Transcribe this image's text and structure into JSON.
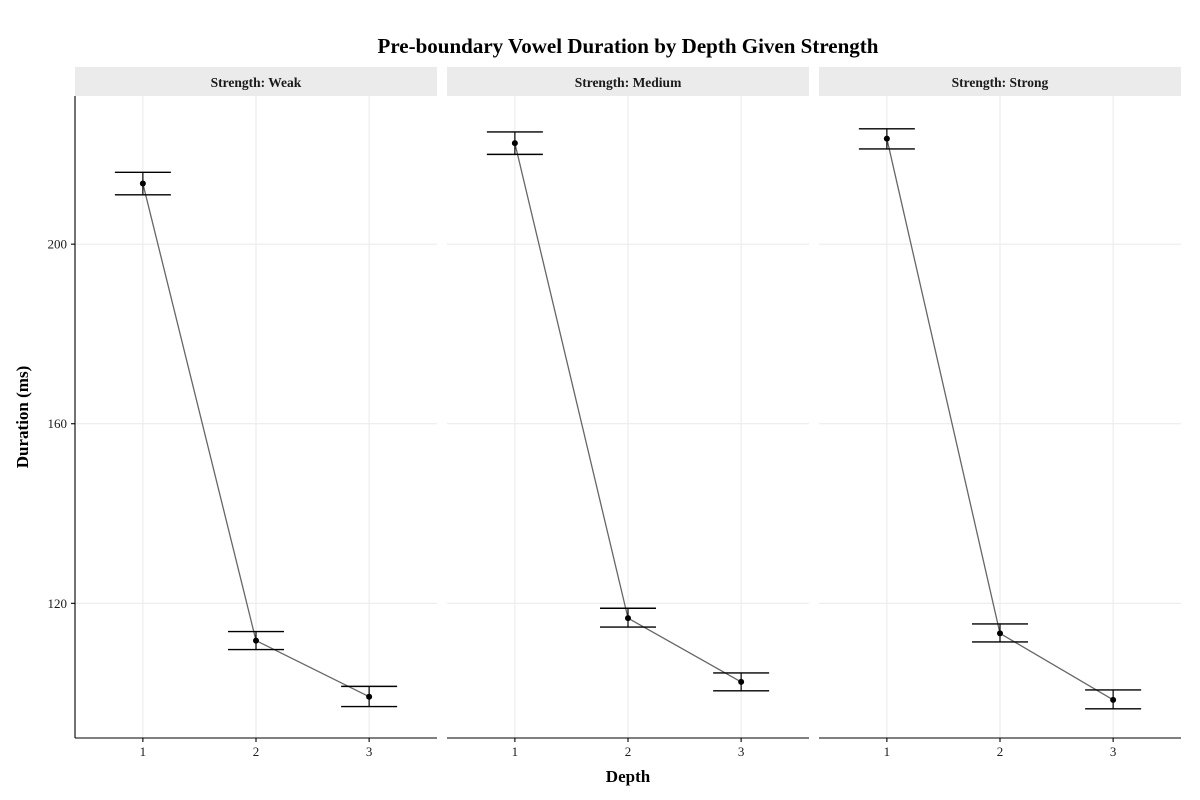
{
  "chart_data": {
    "type": "line",
    "title": "Pre-boundary Vowel Duration by Depth Given Strength",
    "xlabel": "Depth",
    "ylabel": "Duration (ms)",
    "x": [
      1,
      2,
      3
    ],
    "x_ticks": [
      "1",
      "2",
      "3"
    ],
    "y_ticks": [
      120,
      160,
      200
    ],
    "ylim": [
      90,
      233
    ],
    "grid": true,
    "colors": {
      "line": "#666666",
      "point": "#000000",
      "errorbar": "#000000",
      "strip": "#ebebeb",
      "grid": "#ebebeb"
    },
    "panels": [
      {
        "strip": "Strength: Weak",
        "series": [
          {
            "x": 1,
            "y": 213.5,
            "ymin": 211.0,
            "ymax": 216.0
          },
          {
            "x": 2,
            "y": 111.7,
            "ymin": 109.7,
            "ymax": 113.7
          },
          {
            "x": 3,
            "y": 99.2,
            "ymin": 97.0,
            "ymax": 101.5
          }
        ]
      },
      {
        "strip": "Strength: Medium",
        "series": [
          {
            "x": 1,
            "y": 222.5,
            "ymin": 220.0,
            "ymax": 225.0
          },
          {
            "x": 2,
            "y": 116.7,
            "ymin": 114.7,
            "ymax": 118.9
          },
          {
            "x": 3,
            "y": 102.5,
            "ymin": 100.5,
            "ymax": 104.5
          }
        ]
      },
      {
        "strip": "Strength: Strong",
        "series": [
          {
            "x": 1,
            "y": 223.5,
            "ymin": 221.2,
            "ymax": 225.7
          },
          {
            "x": 2,
            "y": 113.3,
            "ymin": 111.4,
            "ymax": 115.4
          },
          {
            "x": 3,
            "y": 98.5,
            "ymin": 96.5,
            "ymax": 100.7
          }
        ]
      }
    ]
  }
}
